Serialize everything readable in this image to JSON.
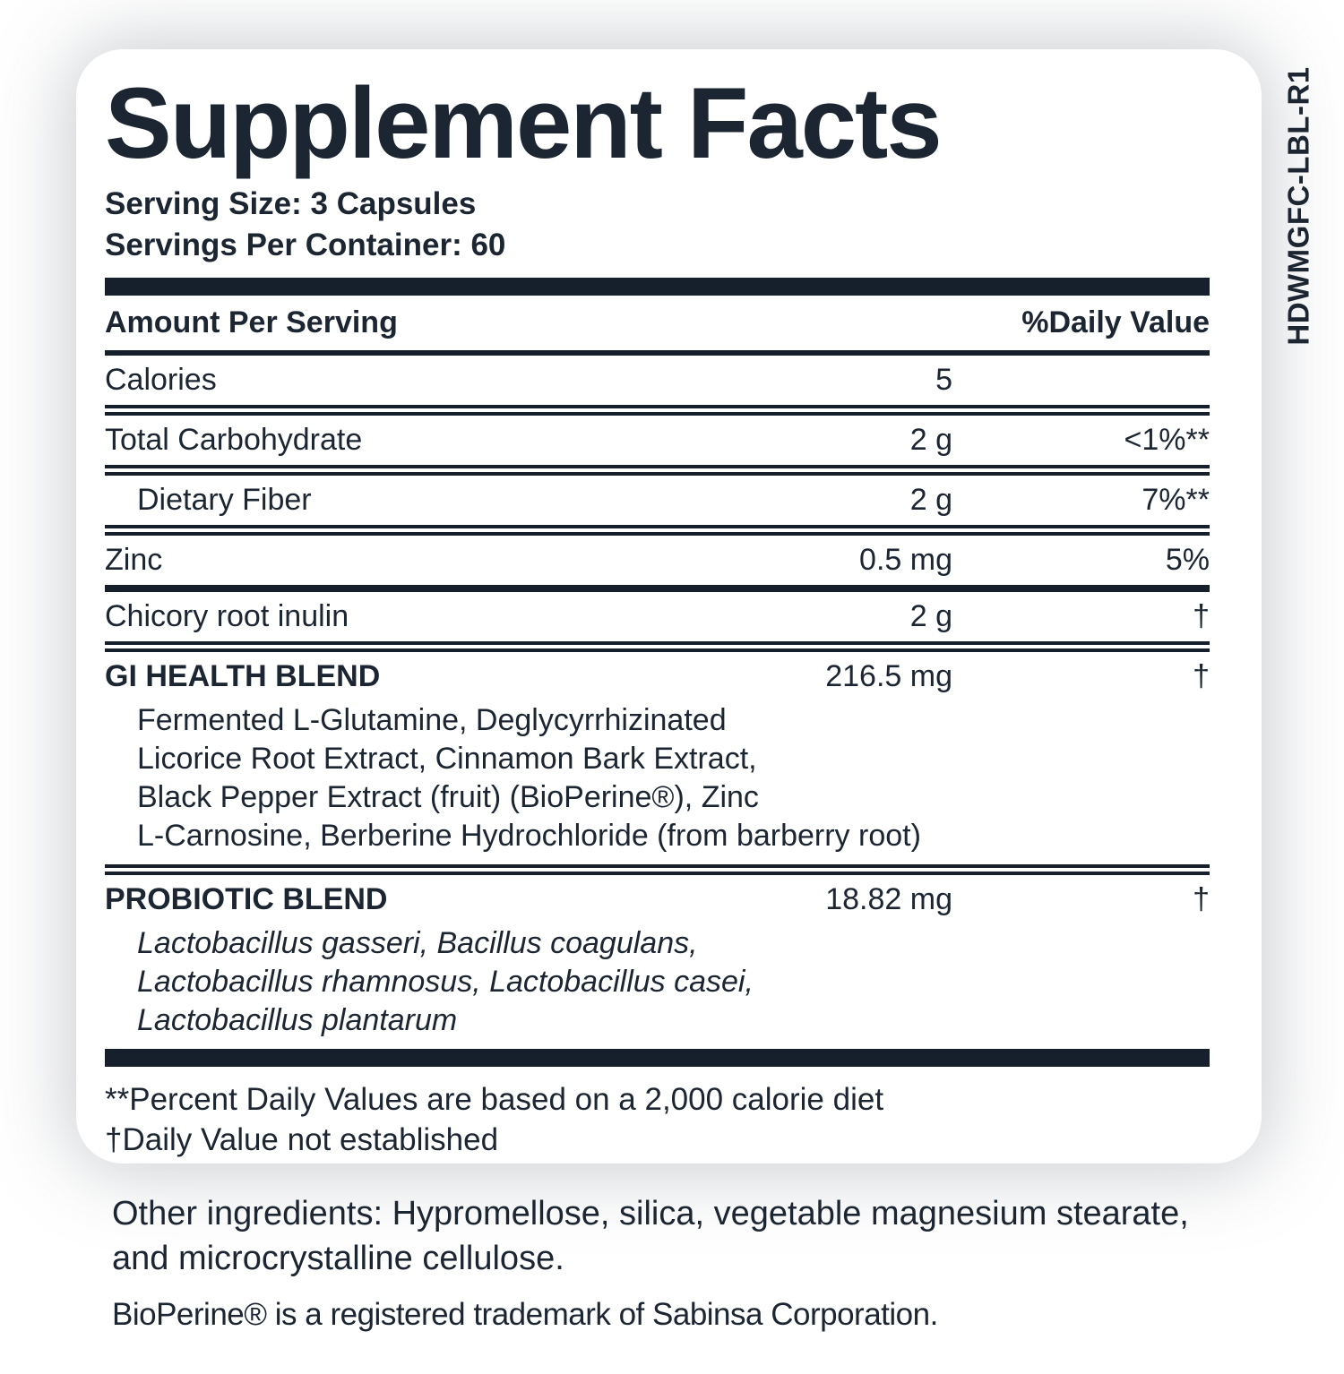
{
  "label_code": "HDWMGFC-LBL-R1",
  "colors": {
    "ink": "#1c2532",
    "bar": "#16202c",
    "page_background": "#ffffff",
    "card_background": "#ffffff"
  },
  "panel": {
    "title": "Supplement Facts",
    "serving_size": "Serving Size: 3 Capsules",
    "servings_per_container": "Servings Per Container: 60",
    "header": {
      "amount": "Amount Per Serving",
      "daily_value": "%Daily Value"
    },
    "rows": [
      {
        "name": "Calories",
        "amount": "5",
        "dv": "",
        "bold": false,
        "indent": false
      },
      {
        "name": "Total Carbohydrate",
        "amount": "2 g",
        "dv": "<1%**",
        "bold": false,
        "indent": false
      },
      {
        "name": "Dietary Fiber",
        "amount": "2 g",
        "dv": "7%**",
        "bold": false,
        "indent": true
      },
      {
        "name": "Zinc",
        "amount": "0.5 mg",
        "dv": "5%",
        "bold": false,
        "indent": false
      },
      {
        "name": "Chicory root inulin",
        "amount": "2 g",
        "dv": "†",
        "bold": false,
        "indent": false
      },
      {
        "name": "GI HEALTH BLEND",
        "amount": "216.5 mg",
        "dv": "†",
        "bold": true,
        "indent": false,
        "desc_lines": [
          "Fermented L-Glutamine, Deglycyrrhizinated",
          "Licorice Root Extract, Cinnamon Bark Extract,",
          "Black Pepper Extract (fruit) (BioPerine®), Zinc",
          "L-Carnosine, Berberine Hydrochloride (from barberry root)"
        ],
        "desc_italic": false
      },
      {
        "name": "PROBIOTIC BLEND",
        "amount": "18.82 mg",
        "dv": "†",
        "bold": true,
        "indent": false,
        "desc_lines": [
          "Lactobacillus gasseri, Bacillus coagulans,",
          "Lactobacillus rhamnosus, Lactobacillus casei,",
          "Lactobacillus plantarum"
        ],
        "desc_italic": true
      }
    ],
    "footnotes": [
      "**Percent Daily Values are based on a 2,000 calorie diet",
      "†Daily Value not established"
    ]
  },
  "other_ingredients": "Other ingredients: Hypromellose, silica, vegetable magnesium stearate, and microcrystalline cellulose.",
  "trademark_note": "BioPerine® is a registered trademark of Sabinsa Corporation."
}
